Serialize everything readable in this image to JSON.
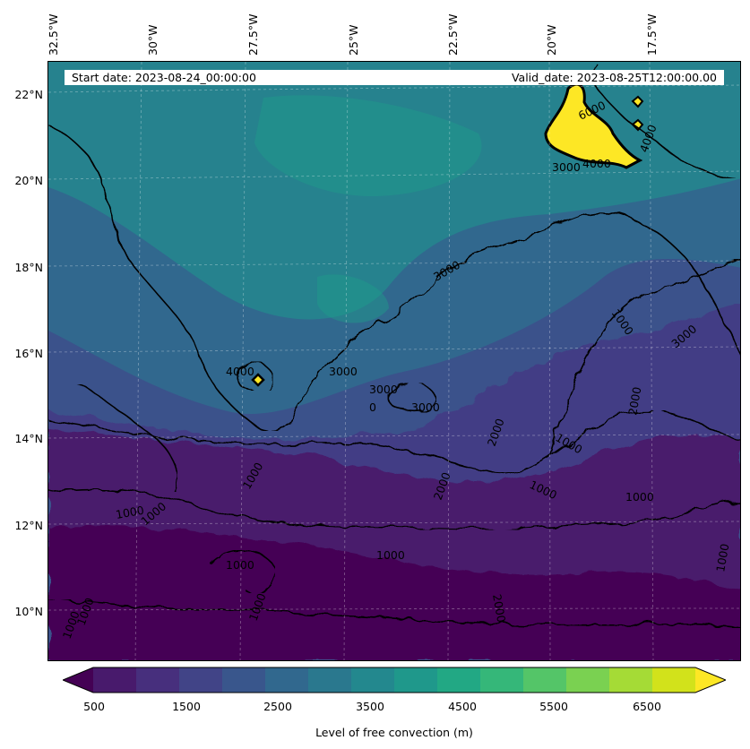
{
  "header": {
    "start_date": "Start date: 2023-08-24_00:00:00",
    "valid_date": "Valid_date: 2023-08-25T12:00:00.00"
  },
  "longitude_labels": [
    "32.5°W",
    "30°W",
    "27.5°W",
    "25°W",
    "22.5°W",
    "20°W",
    "17.5°W"
  ],
  "latitude_labels": [
    "22°N",
    "20°N",
    "18°N",
    "16°N",
    "14°N",
    "12°N",
    "10°N"
  ],
  "contour_labels": [
    "4000",
    "3000",
    "3000",
    "3000",
    "3000",
    "3000",
    "2000",
    "2000",
    "1000",
    "1000",
    "1000",
    "1000",
    "1000",
    "1000",
    "1000",
    "1000",
    "6000",
    "4000",
    "4000",
    "3000",
    "1000",
    "2000",
    "2000",
    "1000",
    "1000",
    "1000",
    "0",
    "1000"
  ],
  "colorbar": {
    "title": "Level of free convection (m)",
    "tick_labels": [
      "500",
      "1500",
      "2500",
      "3500",
      "4500",
      "5500",
      "6500"
    ],
    "colors": [
      "#440154",
      "#481a6c",
      "#472f7d",
      "#414487",
      "#39568c",
      "#31688e",
      "#2a788e",
      "#23888e",
      "#1f988b",
      "#22a884",
      "#35b779",
      "#54c568",
      "#7ad151",
      "#a5db36",
      "#d2e21b",
      "#fde725"
    ]
  },
  "field_colors": {
    "deep": "#440154",
    "low": "#481a6c",
    "mid_low": "#433e85",
    "mid": "#3b528b",
    "mid_high": "#31688e",
    "high": "#26828e",
    "higher": "#1f9e89",
    "top": "#fde725"
  }
}
